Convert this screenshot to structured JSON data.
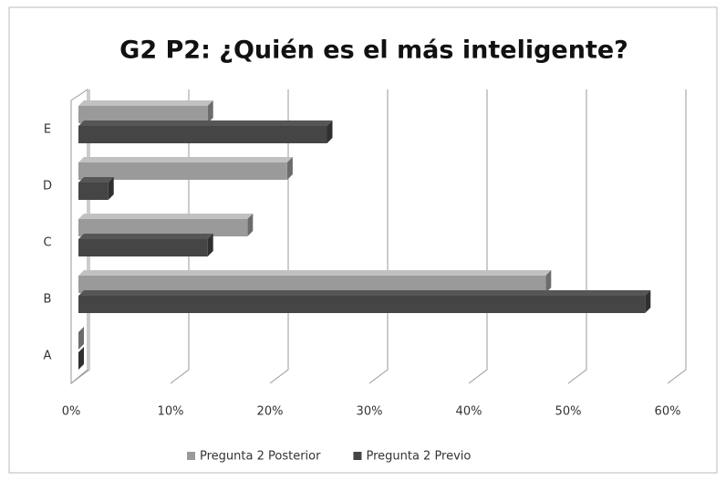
{
  "chart_data": {
    "type": "bar",
    "orientation": "horizontal",
    "title": "G2 P2: ¿Quién es el más inteligente?",
    "categories": [
      "A",
      "B",
      "C",
      "D",
      "E"
    ],
    "series": [
      {
        "name": "Pregunta 2 Posterior",
        "color": "#9a9a9a",
        "values": [
          0,
          47,
          17,
          21,
          13
        ]
      },
      {
        "name": "Pregunta 2 Previo",
        "color": "#454545",
        "values": [
          0,
          57,
          13,
          3,
          25
        ]
      }
    ],
    "xlim": [
      0,
      60
    ],
    "xticks": [
      {
        "value": 0,
        "label": "0%"
      },
      {
        "value": 10,
        "label": "10%"
      },
      {
        "value": 20,
        "label": "20%"
      },
      {
        "value": 30,
        "label": "30%"
      },
      {
        "value": 40,
        "label": "40%"
      },
      {
        "value": 50,
        "label": "50%"
      },
      {
        "value": 60,
        "label": "60%"
      }
    ],
    "grid": true,
    "legend": "bottom"
  }
}
